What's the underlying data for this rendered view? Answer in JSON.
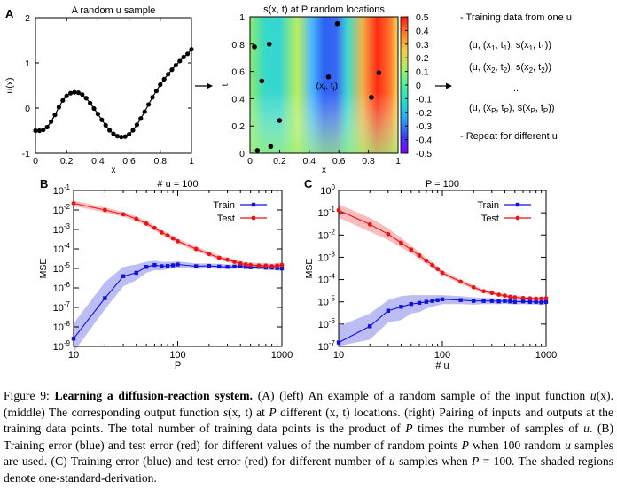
{
  "panel_letters": {
    "a": "A",
    "b": "B",
    "c": "C"
  },
  "chart_data": [
    {
      "id": "u_sample",
      "type": "line",
      "title": "A random u sample",
      "xlabel": "x",
      "ylabel": "u(x)",
      "xlim": [
        0,
        1
      ],
      "ylim": [
        -1,
        2
      ],
      "xticks": [
        "0",
        "0.2",
        "0.4",
        "0.6",
        "0.8",
        "1"
      ],
      "yticks": [
        "-1",
        "0",
        "1",
        "2"
      ],
      "x": [
        0.0,
        0.025,
        0.05,
        0.075,
        0.1,
        0.125,
        0.15,
        0.175,
        0.2,
        0.225,
        0.25,
        0.275,
        0.3,
        0.325,
        0.35,
        0.375,
        0.4,
        0.425,
        0.45,
        0.475,
        0.5,
        0.525,
        0.55,
        0.575,
        0.6,
        0.625,
        0.65,
        0.675,
        0.7,
        0.725,
        0.75,
        0.775,
        0.8,
        0.825,
        0.85,
        0.875,
        0.9,
        0.925,
        0.95,
        0.975,
        1.0
      ],
      "y": [
        -0.5,
        -0.5,
        -0.48,
        -0.42,
        -0.3,
        -0.15,
        0.02,
        0.17,
        0.27,
        0.33,
        0.35,
        0.34,
        0.3,
        0.22,
        0.11,
        -0.01,
        -0.13,
        -0.26,
        -0.38,
        -0.49,
        -0.57,
        -0.62,
        -0.64,
        -0.63,
        -0.58,
        -0.49,
        -0.37,
        -0.23,
        -0.08,
        0.08,
        0.24,
        0.38,
        0.52,
        0.64,
        0.75,
        0.85,
        0.95,
        1.04,
        1.13,
        1.2,
        1.3
      ]
    },
    {
      "id": "s_field",
      "type": "heatmap",
      "title": "s(x, t) at P random locations",
      "xlabel": "x",
      "ylabel": "t",
      "xlim": [
        0,
        1
      ],
      "ylim": [
        0,
        1
      ],
      "xticks": [
        "0",
        "0.2",
        "0.4",
        "0.6",
        "0.8",
        "1"
      ],
      "yticks": [
        "0",
        "0.2",
        "0.4",
        "0.6",
        "0.8",
        "1"
      ],
      "colorbar_range": [
        -0.5,
        0.5
      ],
      "colorbar_ticks": [
        "0.5",
        "0.4",
        "0.3",
        "0.2",
        "0.1",
        "0",
        "-0.1",
        "-0.2",
        "-0.3",
        "-0.4",
        "-0.5"
      ],
      "points": [
        [
          0.03,
          0.78
        ],
        [
          0.13,
          0.8
        ],
        [
          0.08,
          0.53
        ],
        [
          0.2,
          0.24
        ],
        [
          0.14,
          0.05
        ],
        [
          0.05,
          0.02
        ],
        [
          0.59,
          0.95
        ],
        [
          0.53,
          0.56
        ],
        [
          0.87,
          0.59
        ],
        [
          0.82,
          0.41
        ]
      ],
      "point_label": "(x_i, t_i)",
      "point_label_main": "(x",
      "point_label_sub1": "i",
      "point_label_mid": ", t",
      "point_label_sub2": "i",
      "point_label_end": ")",
      "labeled_point_index": 7
    },
    {
      "id": "mse_vs_P",
      "type": "line",
      "title": "# u = 100",
      "xlabel": "P",
      "ylabel": "MSE",
      "xscale": "log",
      "yscale": "log",
      "xlim": [
        10,
        1000
      ],
      "ylim": [
        1e-09,
        0.1
      ],
      "xticks": [
        "10",
        "100",
        "1000"
      ],
      "ytick_exponents": [
        "-1",
        "-2",
        "-3",
        "-4",
        "-5",
        "-6",
        "-7",
        "-8",
        "-9"
      ],
      "legend": "top-right",
      "series": [
        {
          "name": "Train",
          "color": "#1111dd",
          "x": [
            10,
            20,
            30,
            40,
            50,
            60,
            70,
            80,
            90,
            100,
            150,
            200,
            250,
            300,
            350,
            400,
            450,
            500,
            600,
            700,
            800,
            900,
            1000
          ],
          "y": [
            2.5e-09,
            3e-07,
            4e-06,
            6e-06,
            1.2e-05,
            1.5e-05,
            1.3e-05,
            1.35e-05,
            1.45e-05,
            1.6e-05,
            1.3e-05,
            1.35e-05,
            1.25e-05,
            1.2e-05,
            1.25e-05,
            1.3e-05,
            1.2e-05,
            1.15e-05,
            1.2e-05,
            1.1e-05,
            1.1e-05,
            1.05e-05,
            1e-05
          ],
          "band_lo": [
            5e-10,
            8e-08,
            1.2e-06,
            2.5e-06,
            6e-06,
            8e-06,
            8e-06,
            9e-06,
            1e-05,
            1.1e-05,
            9.5e-06,
            1e-05,
            9.5e-06,
            9.5e-06,
            9.8e-06,
            1e-05,
            9.5e-06,
            9e-06,
            9.5e-06,
            8.5e-06,
            8.5e-06,
            8e-06,
            7.5e-06
          ],
          "band_hi": [
            1.5e-08,
            2e-06,
            1.2e-05,
            1.6e-05,
            2.2e-05,
            2.5e-05,
            2.2e-05,
            2.2e-05,
            2.2e-05,
            2.3e-05,
            1.8e-05,
            1.8e-05,
            1.7e-05,
            1.6e-05,
            1.6e-05,
            1.65e-05,
            1.55e-05,
            1.5e-05,
            1.5e-05,
            1.45e-05,
            1.45e-05,
            1.4e-05,
            1.35e-05
          ]
        },
        {
          "name": "Test",
          "color": "#ee1111",
          "x": [
            10,
            20,
            30,
            40,
            50,
            60,
            70,
            80,
            90,
            100,
            150,
            200,
            250,
            300,
            350,
            400,
            450,
            500,
            600,
            700,
            800,
            900,
            1000
          ],
          "y": [
            0.022,
            0.01,
            0.006,
            0.0035,
            0.002,
            0.0012,
            0.0007,
            0.0005,
            0.00035,
            0.00025,
            0.0001,
            5.5e-05,
            3.5e-05,
            2.8e-05,
            2.2e-05,
            1.8e-05,
            1.6e-05,
            1.5e-05,
            1.4e-05,
            1.4e-05,
            1.3e-05,
            1.4e-05,
            1.5e-05
          ],
          "band_lo": [
            0.016,
            0.0075,
            0.0045,
            0.0026,
            0.0015,
            0.0009,
            0.00053,
            0.00038,
            0.00026,
            0.00019,
            7.5e-05,
            4.2e-05,
            2.7e-05,
            2.1e-05,
            1.7e-05,
            1.4e-05,
            1.2e-05,
            1.15e-05,
            1.05e-05,
            1.05e-05,
            1e-05,
            1.05e-05,
            1.1e-05
          ],
          "band_hi": [
            0.03,
            0.0135,
            0.008,
            0.0047,
            0.0027,
            0.0016,
            0.00093,
            0.00066,
            0.00046,
            0.00033,
            0.000135,
            7.3e-05,
            4.6e-05,
            3.7e-05,
            2.9e-05,
            2.4e-05,
            2.1e-05,
            2e-05,
            1.9e-05,
            1.9e-05,
            1.75e-05,
            1.9e-05,
            2e-05
          ]
        }
      ]
    },
    {
      "id": "mse_vs_u",
      "type": "line",
      "title": "P = 100",
      "xlabel": "# u",
      "ylabel": "MSE",
      "xscale": "log",
      "yscale": "log",
      "xlim": [
        10,
        1000
      ],
      "ylim": [
        1e-07,
        1.0
      ],
      "xticks": [
        "10",
        "100",
        "1000"
      ],
      "ytick_exponents": [
        "0",
        "-1",
        "-2",
        "-3",
        "-4",
        "-5",
        "-6",
        "-7"
      ],
      "legend": "top-right",
      "series": [
        {
          "name": "Train",
          "color": "#1111dd",
          "x": [
            10,
            20,
            30,
            40,
            50,
            60,
            70,
            80,
            90,
            100,
            150,
            200,
            250,
            300,
            350,
            400,
            450,
            500,
            600,
            700,
            800,
            900,
            1000
          ],
          "y": [
            1.5e-07,
            8e-07,
            4e-06,
            6e-06,
            8e-06,
            9e-06,
            1e-05,
            1.1e-05,
            1.2e-05,
            1.3e-05,
            1.2e-05,
            1.1e-05,
            1.1e-05,
            1.1e-05,
            1.05e-05,
            1.1e-05,
            1.05e-05,
            1e-05,
            1.05e-05,
            1e-05,
            1e-05,
            9.5e-06,
            1e-05
          ],
          "band_lo": [
            1.05e-07,
            2e-07,
            1.2e-06,
            1.5e-06,
            3e-06,
            3.5e-06,
            5e-06,
            6e-06,
            7e-06,
            8e-06,
            8e-06,
            7.5e-06,
            8e-06,
            8e-06,
            7.8e-06,
            8.2e-06,
            7.9e-06,
            7.6e-06,
            8e-06,
            7.6e-06,
            7.6e-06,
            7.2e-06,
            7.6e-06
          ],
          "band_hi": [
            8e-07,
            3e-06,
            1.2e-05,
            1.8e-05,
            2e-05,
            2e-05,
            2e-05,
            2e-05,
            2e-05,
            2e-05,
            1.8e-05,
            1.6e-05,
            1.5e-05,
            1.5e-05,
            1.4e-05,
            1.45e-05,
            1.4e-05,
            1.35e-05,
            1.38e-05,
            1.3e-05,
            1.3e-05,
            1.25e-05,
            1.3e-05
          ]
        },
        {
          "name": "Test",
          "color": "#ee1111",
          "x": [
            10,
            20,
            30,
            40,
            50,
            60,
            70,
            80,
            90,
            100,
            150,
            200,
            250,
            300,
            350,
            400,
            450,
            500,
            600,
            700,
            800,
            900,
            1000
          ],
          "y": [
            0.13,
            0.03,
            0.011,
            0.0045,
            0.0022,
            0.0012,
            0.0007,
            0.00045,
            0.0003,
            0.0002,
            8e-05,
            4.5e-05,
            3e-05,
            2.5e-05,
            2.1e-05,
            1.9e-05,
            1.7e-05,
            1.6e-05,
            1.5e-05,
            1.45e-05,
            1.4e-05,
            1.4e-05,
            1.45e-05
          ],
          "band_lo": [
            0.06,
            0.014,
            0.006,
            0.0028,
            0.0015,
            0.00085,
            0.00052,
            0.00034,
            0.00023,
            0.000155,
            6.5e-05,
            3.7e-05,
            2.5e-05,
            2.1e-05,
            1.8e-05,
            1.6e-05,
            1.45e-05,
            1.35e-05,
            1.28e-05,
            1.23e-05,
            1.2e-05,
            1.2e-05,
            1.25e-05
          ],
          "band_hi": [
            0.24,
            0.06,
            0.02,
            0.0075,
            0.0033,
            0.0017,
            0.00095,
            0.0006,
            0.00039,
            0.00026,
            0.0001,
            5.5e-05,
            3.6e-05,
            3e-05,
            2.5e-05,
            2.25e-05,
            2e-05,
            1.9e-05,
            1.75e-05,
            1.7e-05,
            1.65e-05,
            1.65e-05,
            1.7e-05
          ]
        }
      ]
    }
  ],
  "pairing": {
    "header": "- Training data from one u",
    "line1": {
      "a": "(u, (x",
      "s1": "1",
      "b": ", t",
      "s2": "1",
      "c": "), s(x",
      "s3": "1",
      "d": ", t",
      "s4": "1",
      "e": "))"
    },
    "line2": {
      "a": "(u, (x",
      "s1": "2",
      "b": ", t",
      "s2": "2",
      "c": "), s(x",
      "s3": "2",
      "d": ", t",
      "s4": "2",
      "e": "))"
    },
    "ellipsis": "...",
    "lineP": {
      "a": "(u, (x",
      "s1": "P",
      "b": ", t",
      "s2": "P",
      "c": "), s(x",
      "s3": "P",
      "d": ", t",
      "s4": "P",
      "e": "))"
    },
    "footer": "- Repeat for different u"
  },
  "caption": {
    "lead": "Figure 9: ",
    "title": "Learning a diffusion-reaction system.",
    "p1": " (A) (left) An example of a random sample of the input function ",
    "m1": "u",
    "m1b": "(x)",
    "p2": ". (middle) The corresponding output function ",
    "m2": "s",
    "m2b": "(x, t)",
    "p3": " at ",
    "m3": "P",
    "p4": " different ",
    "m4": "(x, t)",
    "p5": " locations. (right) Pairing of inputs and outputs at the training data points. The total number of training data points is the product of ",
    "m5": "P",
    "p6": " times the number of samples of ",
    "m6": "u",
    "p7": ". (B) Training error (blue) and test error (red) for different values of the number of random points ",
    "m7": "P",
    "p8": " when 100 random ",
    "m8": "u",
    "p9": " samples are used. (C) Training error (blue) and test error (red) for different number of ",
    "m9": "u",
    "p10": " samples when ",
    "m10": "P",
    "p11": " = 100. The shaded regions denote one-standard-derivation."
  }
}
